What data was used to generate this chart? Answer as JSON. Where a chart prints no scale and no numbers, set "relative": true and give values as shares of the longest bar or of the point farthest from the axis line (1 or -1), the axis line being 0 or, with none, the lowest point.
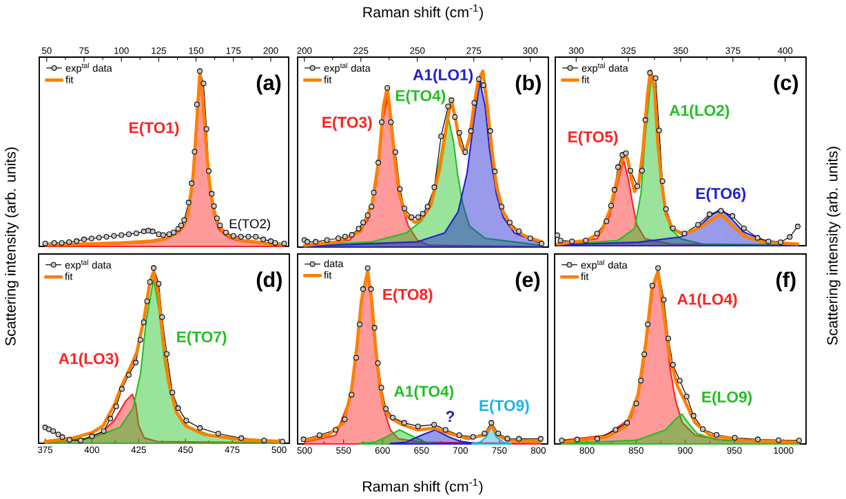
{
  "chart_data": [
    {
      "type": "line",
      "relative": true,
      "title": "(a)",
      "ylabel": "Scattering intensity (arb. units)",
      "xlim": [
        45,
        212
      ],
      "xticks": [
        50,
        75,
        100,
        125,
        150,
        175,
        200
      ],
      "legend": "top left",
      "annotations": [
        {
          "text": "E(TO2)",
          "x": 186,
          "y": 0.06
        }
      ],
      "series": [
        {
          "name": "exp$^{tal}$ data",
          "type": "line",
          "marker": "circle",
          "color": "#000000",
          "x": [
            49,
            55,
            60,
            65,
            70,
            75,
            80,
            85,
            90,
            95,
            100,
            105,
            110,
            115,
            118,
            121,
            125,
            128,
            132,
            135,
            138,
            140,
            142,
            145,
            147,
            149,
            150.5,
            152.5,
            155,
            157,
            158.5,
            160.5,
            162,
            164,
            166,
            170,
            175,
            180,
            185,
            190,
            195,
            200,
            203,
            209
          ],
          "values": [
            0.017,
            0.02,
            0.02,
            0.025,
            0.03,
            0.04,
            0.045,
            0.05,
            0.055,
            0.06,
            0.065,
            0.07,
            0.075,
            0.085,
            0.09,
            0.085,
            0.07,
            0.065,
            0.07,
            0.08,
            0.1,
            0.12,
            0.15,
            0.25,
            0.36,
            0.54,
            0.81,
            1.0,
            0.93,
            0.67,
            0.43,
            0.3,
            0.23,
            0.16,
            0.12,
            0.08,
            0.06,
            0.055,
            0.056,
            0.055,
            0.04,
            0.03,
            0.02,
            0.017
          ]
        },
        {
          "name": "fit",
          "type": "line",
          "color": "#ff7f00",
          "x": [
            49,
            70,
            100,
            120,
            130,
            138,
            142,
            145,
            148,
            150,
            151.5,
            152.5,
            154,
            155.5,
            157,
            158.5,
            160,
            162,
            165,
            170,
            175,
            180,
            190,
            200,
            209
          ],
          "values": [
            0.01,
            0.012,
            0.02,
            0.03,
            0.045,
            0.08,
            0.12,
            0.2,
            0.4,
            0.65,
            0.85,
            0.99,
            0.9,
            0.72,
            0.55,
            0.4,
            0.3,
            0.2,
            0.12,
            0.07,
            0.05,
            0.035,
            0.025,
            0.015,
            0.01
          ]
        },
        {
          "name": "E(TO1)",
          "type": "area",
          "color": "#ff2020",
          "x": [
            49,
            70,
            100,
            120,
            130,
            138,
            142,
            145,
            148,
            150,
            151.5,
            152.5,
            154,
            155.5,
            157,
            158.5,
            160,
            162,
            165,
            170,
            175,
            180,
            190,
            200,
            209
          ],
          "values": [
            0.005,
            0.008,
            0.015,
            0.025,
            0.04,
            0.075,
            0.115,
            0.19,
            0.39,
            0.64,
            0.84,
            0.97,
            0.88,
            0.7,
            0.53,
            0.38,
            0.28,
            0.18,
            0.1,
            0.06,
            0.04,
            0.03,
            0.02,
            0.012,
            0.008
          ]
        }
      ]
    },
    {
      "type": "line",
      "relative": true,
      "title": "(b)",
      "xlabel": "Raman shift (cm$^{-1}$)",
      "xlim": [
        197,
        308
      ],
      "xticks": [
        200,
        225,
        250,
        275,
        300
      ],
      "legend": "top left",
      "series": [
        {
          "name": "exp$^{tal}$ data",
          "type": "line",
          "marker": "circle",
          "color": "#000000",
          "x": [
            200,
            201.3,
            205,
            210,
            215,
            218,
            221,
            224,
            226,
            228,
            229.7,
            230.7,
            232.7,
            234.2,
            236.7,
            238.3,
            240.3,
            242.3,
            244.3,
            247.4,
            250.4,
            252.4,
            254.5,
            257.5,
            260.5,
            263.6,
            265.1,
            266.6,
            268.6,
            271.2,
            273.7,
            275.2,
            277.2,
            279.3,
            282.3,
            284.3,
            287.3,
            290.9,
            294.9,
            300,
            305
          ],
          "values": [
            0.04,
            0.03,
            0.03,
            0.04,
            0.05,
            0.06,
            0.07,
            0.105,
            0.14,
            0.18,
            0.23,
            0.31,
            0.48,
            0.71,
            0.905,
            0.71,
            0.54,
            0.33,
            0.22,
            0.17,
            0.17,
            0.19,
            0.23,
            0.34,
            0.63,
            0.8,
            0.835,
            0.74,
            0.65,
            0.54,
            0.66,
            0.82,
            0.955,
            0.92,
            0.66,
            0.43,
            0.23,
            0.14,
            0.09,
            0.05,
            0.02
          ]
        },
        {
          "name": "fit",
          "type": "line",
          "color": "#ff7f00",
          "x": [
            200,
            215,
            225,
            230,
            233,
            235,
            236.7,
            238.5,
            240,
            242,
            245,
            249,
            252,
            256,
            260,
            263,
            265,
            267,
            269,
            271,
            273,
            275,
            277,
            279,
            281,
            283,
            285,
            288,
            292,
            298,
            305
          ],
          "values": [
            0.01,
            0.03,
            0.09,
            0.25,
            0.5,
            0.8,
            0.91,
            0.7,
            0.5,
            0.3,
            0.18,
            0.14,
            0.16,
            0.24,
            0.45,
            0.7,
            0.84,
            0.72,
            0.58,
            0.53,
            0.62,
            0.8,
            0.95,
            1.0,
            0.8,
            0.55,
            0.35,
            0.2,
            0.11,
            0.06,
            0.03
          ]
        },
        {
          "name": "E(TO3)",
          "type": "area",
          "color": "#ff2020",
          "x": [
            200,
            220,
            228,
            232,
            234.5,
            236.7,
            239,
            241,
            243,
            246,
            250,
            255,
            305
          ],
          "values": [
            0.005,
            0.04,
            0.15,
            0.38,
            0.7,
            0.85,
            0.65,
            0.4,
            0.24,
            0.12,
            0.04,
            0.01,
            0.003
          ]
        },
        {
          "name": "E(TO4)",
          "type": "area",
          "color": "#20c020",
          "x": [
            200,
            230,
            245,
            252,
            257,
            260,
            262,
            263.8,
            266,
            268,
            270,
            273,
            280,
            305
          ],
          "values": [
            0.01,
            0.03,
            0.08,
            0.15,
            0.3,
            0.5,
            0.65,
            0.73,
            0.6,
            0.4,
            0.25,
            0.12,
            0.05,
            0.01
          ]
        },
        {
          "name": "A1(LO1)",
          "type": "area",
          "color": "#2020d0",
          "x": [
            200,
            250,
            262,
            268,
            272,
            275,
            277.7,
            280,
            282,
            285,
            288,
            293,
            305
          ],
          "values": [
            0.005,
            0.03,
            0.08,
            0.2,
            0.42,
            0.72,
            0.94,
            0.8,
            0.55,
            0.3,
            0.17,
            0.08,
            0.02
          ]
        }
      ]
    },
    {
      "type": "line",
      "relative": true,
      "title": "(c)",
      "y2label": "Scattering intensity (arb. units)",
      "xlim": [
        290,
        410
      ],
      "xticks": [
        300,
        325,
        350,
        375,
        400
      ],
      "legend": "top left",
      "series": [
        {
          "name": "exp$^{tal}$ data",
          "type": "line",
          "marker": "circle",
          "color": "#000000",
          "x": [
            291,
            292.5,
            298,
            304.6,
            310,
            314.5,
            316.7,
            318.3,
            320,
            322.1,
            323.8,
            326,
            329.3,
            331.5,
            333.1,
            335.3,
            338,
            339.7,
            341.3,
            343,
            346.3,
            351.8,
            358.3,
            363.8,
            369.3,
            374.8,
            380.3,
            386.8,
            392,
            397.8,
            402.2,
            406
          ],
          "values": [
            0.06,
            0.03,
            0.025,
            0.03,
            0.07,
            0.14,
            0.23,
            0.32,
            0.45,
            0.52,
            0.53,
            0.43,
            0.34,
            0.43,
            0.72,
            0.99,
            0.96,
            0.66,
            0.37,
            0.21,
            0.1,
            0.07,
            0.12,
            0.18,
            0.2,
            0.17,
            0.1,
            0.045,
            0.025,
            0.02,
            0.05,
            0.11
          ]
        },
        {
          "name": "fit",
          "type": "line",
          "color": "#ff7f00",
          "x": [
            291,
            305,
            312,
            316,
            319,
            321,
            323,
            324.5,
            326.5,
            328,
            330,
            332,
            334,
            335.5,
            337.5,
            339,
            341,
            343,
            346,
            350,
            355,
            360,
            365,
            369,
            372,
            376,
            381,
            390,
            406
          ],
          "values": [
            0.01,
            0.03,
            0.08,
            0.2,
            0.35,
            0.45,
            0.52,
            0.5,
            0.38,
            0.31,
            0.36,
            0.55,
            0.85,
            1.0,
            0.9,
            0.6,
            0.35,
            0.18,
            0.1,
            0.07,
            0.08,
            0.11,
            0.15,
            0.18,
            0.15,
            0.1,
            0.05,
            0.02,
            0.01
          ]
        },
        {
          "name": "E(TO5)",
          "type": "area",
          "color": "#ff2020",
          "x": [
            291,
            310,
            316,
            319,
            322.7,
            325,
            327,
            329,
            333,
            345,
            406
          ],
          "values": [
            0.005,
            0.04,
            0.17,
            0.32,
            0.49,
            0.38,
            0.24,
            0.12,
            0.04,
            0.01,
            0.003
          ]
        },
        {
          "name": "A1(LO2)",
          "type": "area",
          "color": "#20c020",
          "x": [
            291,
            320,
            328,
            331,
            333,
            336,
            338,
            340,
            342,
            345,
            350,
            360,
            406
          ],
          "values": [
            0.005,
            0.03,
            0.1,
            0.3,
            0.62,
            0.98,
            0.85,
            0.5,
            0.25,
            0.1,
            0.04,
            0.01,
            0.003
          ]
        },
        {
          "name": "E(TO6)",
          "type": "area",
          "color": "#2020d0",
          "x": [
            291,
            330,
            350,
            358,
            364,
            369.3,
            374,
            380,
            390,
            406
          ],
          "values": [
            0.005,
            0.02,
            0.05,
            0.1,
            0.17,
            0.21,
            0.16,
            0.08,
            0.03,
            0.01
          ]
        }
      ]
    },
    {
      "type": "line",
      "relative": true,
      "title": "(d)",
      "xlim": [
        371.5,
        505.5
      ],
      "xticks": [
        375,
        400,
        425,
        450,
        475,
        500
      ],
      "legend": "top left",
      "series": [
        {
          "name": "exp$^{tal}$ data",
          "type": "line",
          "marker": "circle",
          "color": "#000000",
          "x": [
            375,
            377,
            379.3,
            382,
            384.2,
            388,
            394,
            400,
            406.3,
            409.9,
            413,
            416,
            419.7,
            423.4,
            425.9,
            427.7,
            429.5,
            431,
            433,
            435.7,
            437.5,
            440,
            443,
            446.1,
            450.4,
            457.7,
            467.5,
            479.8,
            492,
            501.8
          ],
          "values": [
            0.09,
            0.08,
            0.07,
            0.05,
            0.035,
            0.02,
            0.016,
            0.04,
            0.07,
            0.14,
            0.21,
            0.31,
            0.39,
            0.46,
            0.59,
            0.69,
            0.81,
            0.92,
            1.0,
            0.91,
            0.72,
            0.51,
            0.29,
            0.2,
            0.13,
            0.087,
            0.055,
            0.029,
            0.016,
            0.01
          ]
        },
        {
          "name": "fit",
          "type": "line",
          "color": "#ff7f00",
          "x": [
            375,
            390,
            400,
            406,
            412,
            416,
            420,
            424,
            428,
            431,
            433,
            435.5,
            438,
            441,
            445,
            450,
            460,
            480,
            501.8
          ],
          "values": [
            0.01,
            0.03,
            0.06,
            0.1,
            0.22,
            0.33,
            0.42,
            0.52,
            0.72,
            0.92,
            0.98,
            0.85,
            0.6,
            0.35,
            0.18,
            0.1,
            0.05,
            0.02,
            0.01
          ]
        },
        {
          "name": "A1(LO3)",
          "type": "area",
          "color": "#ff2020",
          "x": [
            375,
            395,
            405,
            412,
            418,
            421.6,
            423.5,
            425,
            428,
            435,
            501.8
          ],
          "values": [
            0.005,
            0.02,
            0.06,
            0.13,
            0.24,
            0.28,
            0.22,
            0.1,
            0.03,
            0.01,
            0.002
          ]
        },
        {
          "name": "E(TO7)",
          "type": "area",
          "color": "#20c020",
          "x": [
            375,
            400,
            415,
            422,
            426,
            429,
            433,
            436,
            439,
            442,
            446,
            452,
            465,
            501.8
          ],
          "values": [
            0.01,
            0.03,
            0.09,
            0.2,
            0.4,
            0.7,
            0.94,
            0.75,
            0.45,
            0.28,
            0.16,
            0.09,
            0.04,
            0.01
          ]
        }
      ]
    },
    {
      "type": "line",
      "relative": true,
      "title": "(e)",
      "xlabel": "Raman shift (cm$^{-1}$)",
      "xlim": [
        491,
        812
      ],
      "xticks": [
        500,
        550,
        600,
        650,
        700,
        750,
        800
      ],
      "legend": "top left",
      "series": [
        {
          "name": "data",
          "type": "line",
          "marker": "circle",
          "color": "#000000",
          "x": [
            498.5,
            519,
            539.7,
            551.5,
            560.3,
            566.2,
            570.6,
            575,
            580.9,
            585.3,
            589.7,
            594.1,
            598.5,
            604.4,
            613.2,
            627.9,
            645.6,
            666.2,
            680.9,
            698.5,
            716.2,
            730.9,
            739.7,
            748.5,
            760.3,
            775,
            803
          ],
          "values": [
            0.026,
            0.05,
            0.08,
            0.14,
            0.28,
            0.49,
            0.68,
            0.88,
            1.0,
            0.88,
            0.66,
            0.46,
            0.32,
            0.2,
            0.15,
            0.12,
            0.1,
            0.11,
            0.08,
            0.05,
            0.04,
            0.06,
            0.12,
            0.06,
            0.03,
            0.029,
            0.029
          ]
        },
        {
          "name": "fit",
          "type": "line",
          "color": "#ff7f00",
          "x": [
            500,
            530,
            550,
            560,
            567,
            573,
            580.9,
            586,
            591,
            596,
            602,
            610,
            625,
            645,
            667,
            685,
            710,
            730,
            740,
            748,
            760,
            803
          ],
          "values": [
            0.02,
            0.05,
            0.12,
            0.3,
            0.55,
            0.82,
            0.98,
            0.82,
            0.55,
            0.35,
            0.2,
            0.15,
            0.11,
            0.08,
            0.09,
            0.06,
            0.03,
            0.05,
            0.1,
            0.05,
            0.02,
            0.015
          ]
        },
        {
          "name": "E(TO8)",
          "type": "area",
          "color": "#ff2020",
          "x": [
            500,
            540,
            560,
            567,
            574,
            580.9,
            586,
            592,
            600,
            610,
            620,
            650,
            803
          ],
          "values": [
            0.01,
            0.05,
            0.28,
            0.55,
            0.85,
            0.98,
            0.8,
            0.5,
            0.22,
            0.08,
            0.03,
            0.01,
            0.002
          ]
        },
        {
          "name": "A1(TO4)",
          "type": "area",
          "color": "#20c020",
          "x": [
            570,
            590,
            605,
            622,
            640,
            655,
            670
          ],
          "values": [
            0.003,
            0.01,
            0.04,
            0.08,
            0.04,
            0.01,
            0.003
          ]
        },
        {
          "name": "?",
          "type": "area",
          "color": "#2020d0",
          "x": [
            610,
            630,
            650,
            667.6,
            685,
            700,
            720
          ],
          "values": [
            0.003,
            0.01,
            0.05,
            0.08,
            0.04,
            0.015,
            0.003
          ]
        },
        {
          "name": "E(TO9)",
          "type": "area",
          "color": "#1ab4e6",
          "x": [
            715,
            725,
            733,
            739.7,
            746,
            755,
            765
          ],
          "values": [
            0.003,
            0.01,
            0.04,
            0.1,
            0.04,
            0.01,
            0.003
          ]
        }
      ]
    },
    {
      "type": "line",
      "relative": true,
      "title": "(f)",
      "xlim": [
        767,
        1023
      ],
      "xticks": [
        800,
        850,
        900,
        950,
        1000
      ],
      "legend": "top left",
      "series": [
        {
          "name": "exp$^{tal}$ data",
          "type": "line",
          "marker": "circle",
          "color": "#000000",
          "x": [
            774.3,
            790,
            810.5,
            829,
            840.8,
            850.2,
            854.8,
            858.3,
            861.8,
            866.5,
            872.3,
            878.2,
            882.8,
            887.5,
            894.5,
            901.5,
            908.5,
            917.9,
            931.9,
            950.5,
            973.9,
            995,
            1015.9
          ],
          "values": [
            0.02,
            0.025,
            0.03,
            0.08,
            0.12,
            0.23,
            0.36,
            0.51,
            0.68,
            0.9,
            1.0,
            0.82,
            0.6,
            0.45,
            0.36,
            0.27,
            0.16,
            0.084,
            0.052,
            0.035,
            0.026,
            0.022,
            0.02
          ]
        },
        {
          "name": "fit",
          "type": "line",
          "color": "#ff7f00",
          "x": [
            774,
            820,
            840,
            852,
            860,
            866,
            872.3,
            878,
            884,
            892,
            900,
            910,
            925,
            960,
            1016
          ],
          "values": [
            0.01,
            0.04,
            0.1,
            0.28,
            0.58,
            0.88,
            0.98,
            0.75,
            0.5,
            0.33,
            0.24,
            0.12,
            0.05,
            0.02,
            0.01
          ]
        },
        {
          "name": "A1(LO4)",
          "type": "area",
          "color": "#ff2020",
          "x": [
            774,
            820,
            845,
            855,
            862,
            867,
            872.3,
            878,
            884,
            890,
            897,
            910,
            940,
            1016
          ],
          "values": [
            0.02,
            0.05,
            0.15,
            0.35,
            0.65,
            0.88,
            0.98,
            0.75,
            0.45,
            0.25,
            0.12,
            0.05,
            0.02,
            0.01
          ]
        },
        {
          "name": "E(LO9)",
          "type": "area",
          "color": "#20c020",
          "x": [
            774,
            850,
            880,
            890,
            896.5,
            903,
            912,
            930,
            1016
          ],
          "values": [
            0.005,
            0.02,
            0.08,
            0.14,
            0.17,
            0.12,
            0.06,
            0.025,
            0.005
          ]
        }
      ]
    }
  ]
}
